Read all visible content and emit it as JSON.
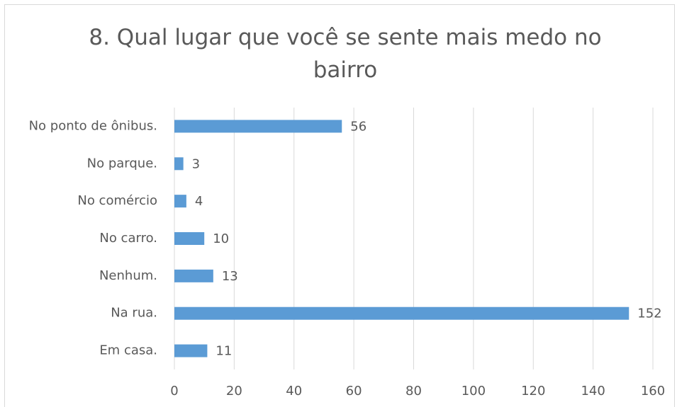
{
  "chart_data": {
    "type": "barh",
    "title": "8.  Qual lugar que você se sente mais medo no bairro",
    "categories": [
      "No ponto de ônibus.",
      "No parque.",
      "No comércio",
      "No carro.",
      "Nenhum.",
      "Na rua.",
      "Em casa."
    ],
    "values": [
      56,
      3,
      4,
      10,
      13,
      152,
      11
    ],
    "color": "#5b9bd5",
    "xlim": [
      0,
      160
    ],
    "xticks": [
      0,
      20,
      40,
      60,
      80,
      100,
      120,
      140,
      160
    ],
    "grid": true
  }
}
